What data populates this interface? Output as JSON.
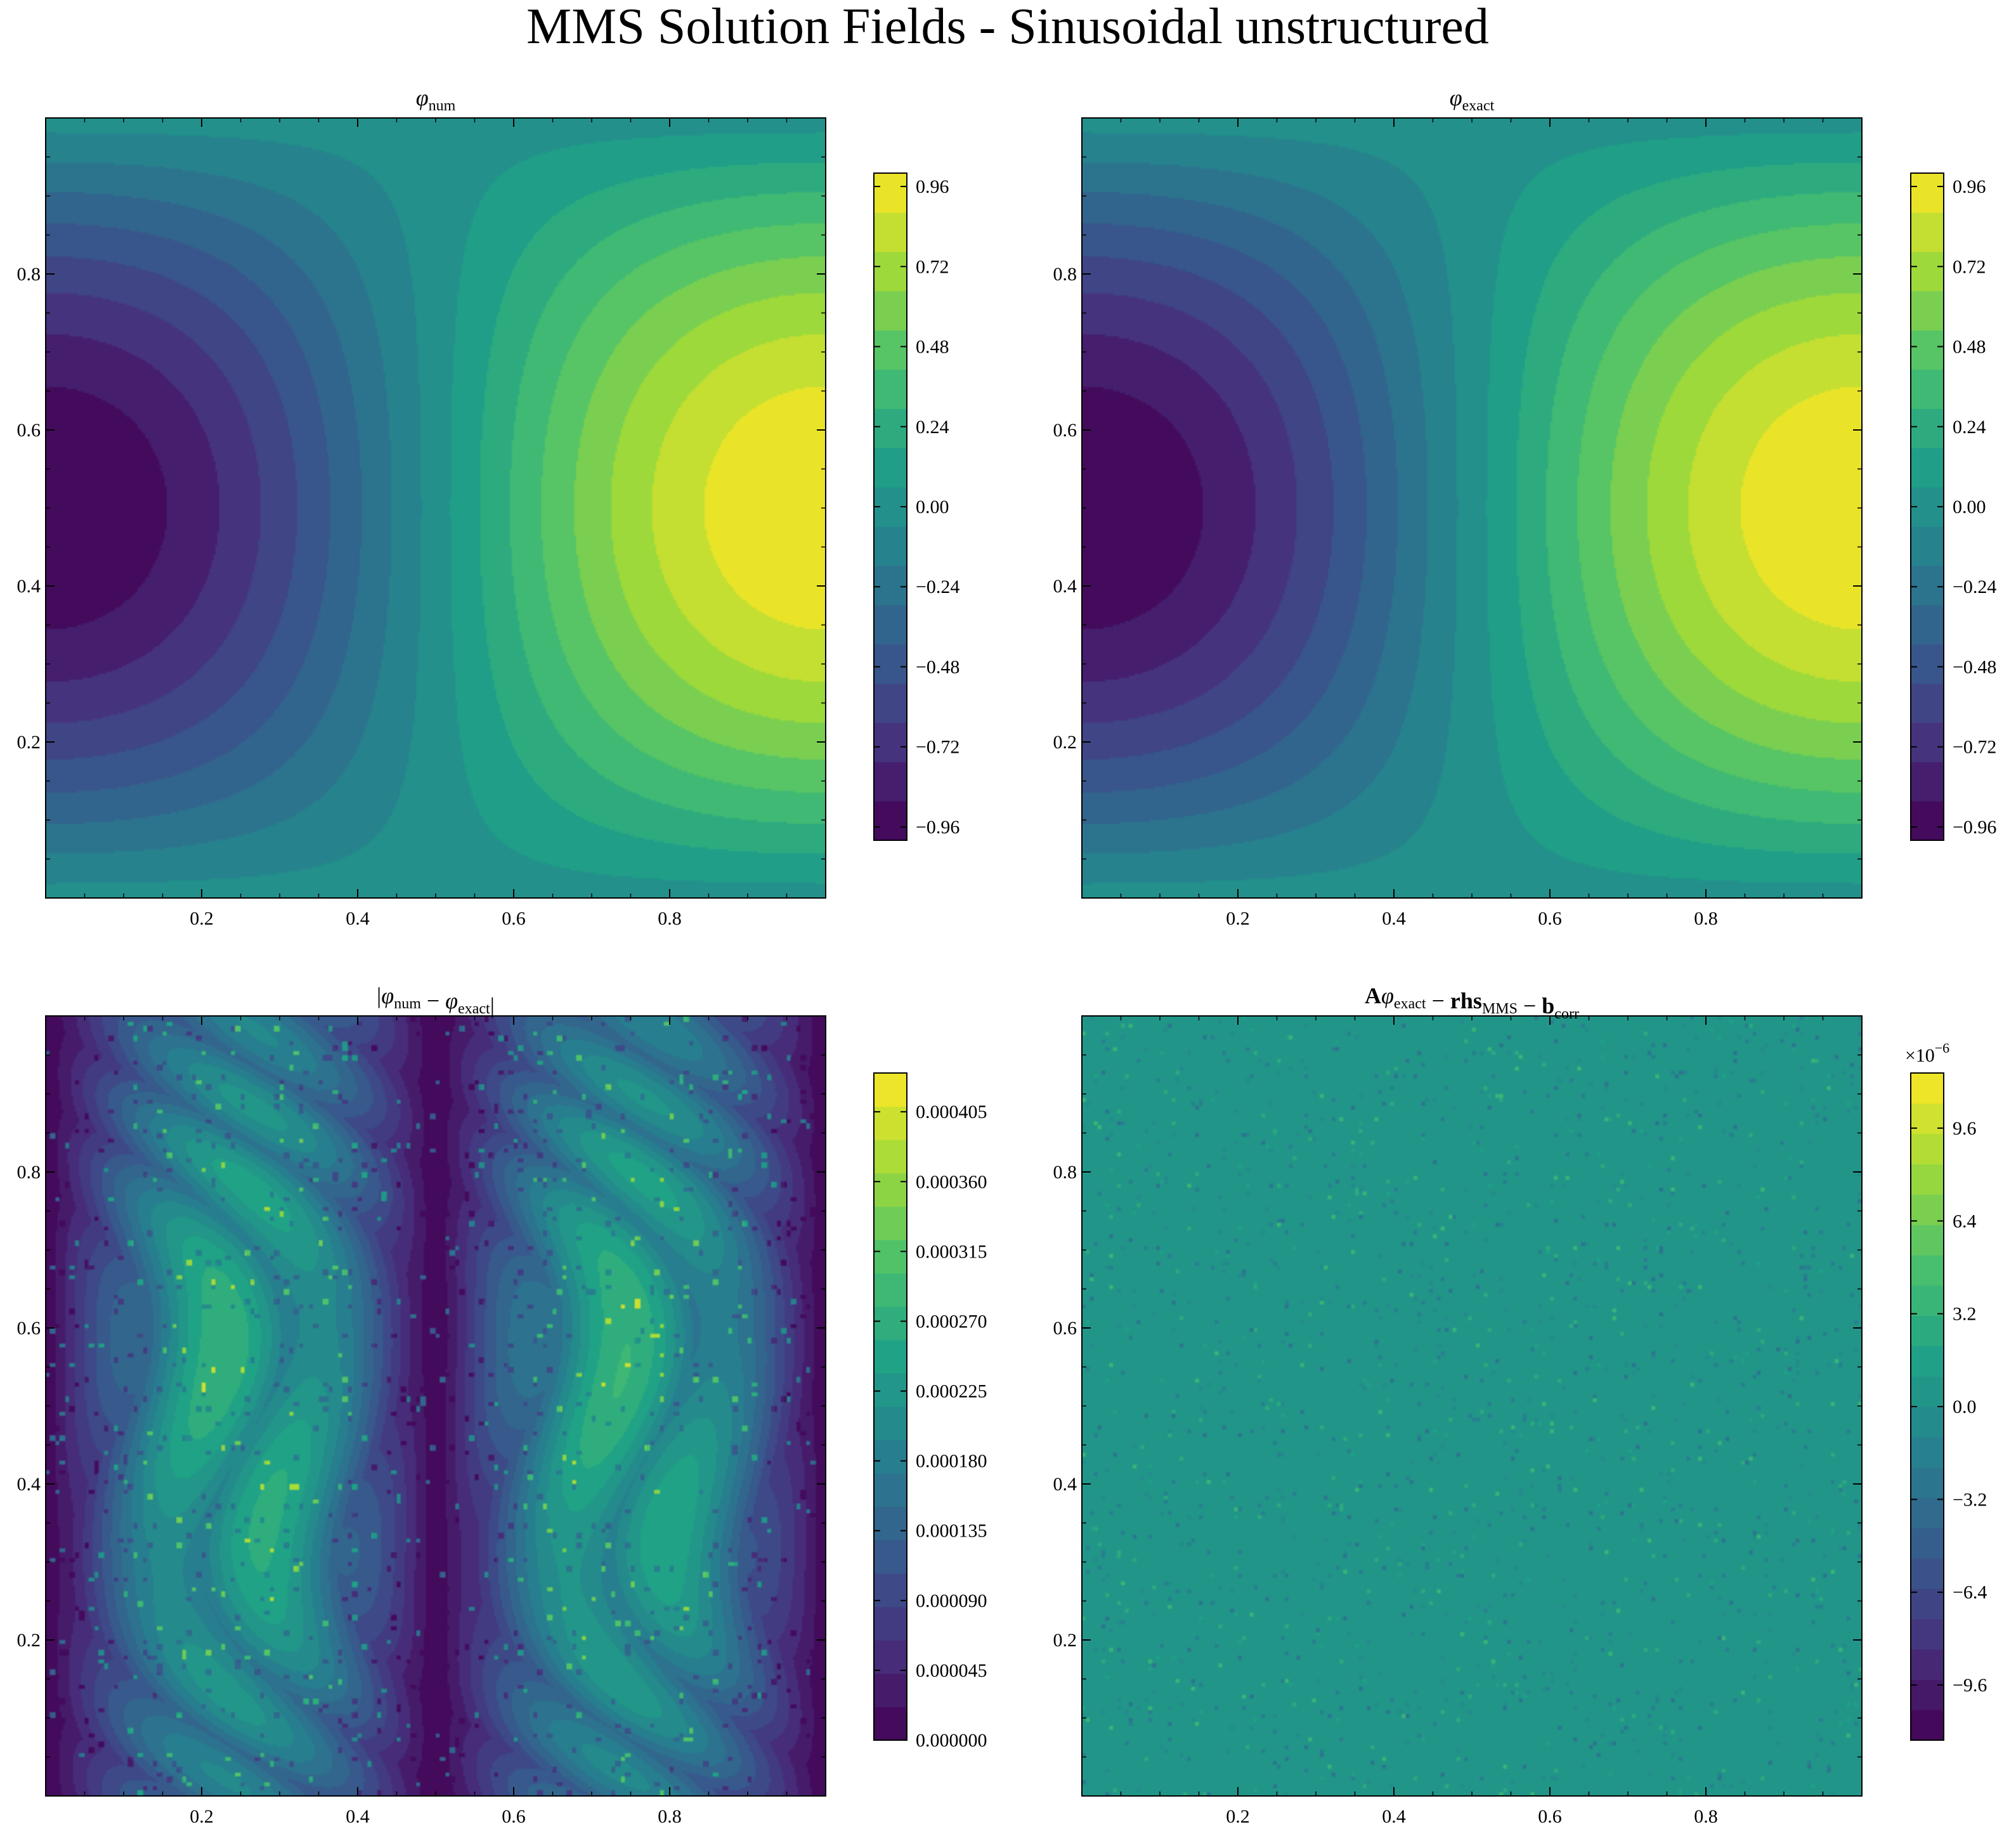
{
  "figure": {
    "title": "MMS Solution Fields - Sinusoidal unstructured"
  },
  "colors": {
    "viridis": [
      "#440154",
      "#46327e",
      "#365c8d",
      "#277f8e",
      "#1fa187",
      "#4ac16d",
      "#a0da39",
      "#fde725"
    ]
  },
  "chart_data": [
    {
      "type": "heatmap",
      "title": "φnum",
      "title_parts": [
        {
          "t": "φ",
          "style": "italic"
        },
        {
          "t": "num",
          "style": "sub"
        }
      ],
      "field": "phi",
      "xlim": [
        0,
        1
      ],
      "ylim": [
        0,
        1
      ],
      "xticks": [
        "0.2",
        "0.4",
        "0.6",
        "0.8"
      ],
      "yticks": [
        "0.2",
        "0.4",
        "0.6",
        "0.8"
      ],
      "colorbar": {
        "vmin": -1.0,
        "vmax": 1.0,
        "ticks": [
          "−0.96",
          "−0.72",
          "−0.48",
          "−0.24",
          "0.00",
          "0.24",
          "0.48",
          "0.72",
          "0.96"
        ],
        "tick_values": [
          -0.96,
          -0.72,
          -0.48,
          -0.24,
          0.0,
          0.24,
          0.48,
          0.72,
          0.96
        ],
        "levels": 17,
        "offset_label": ""
      }
    },
    {
      "type": "heatmap",
      "title": "φexact",
      "title_parts": [
        {
          "t": "φ",
          "style": "italic"
        },
        {
          "t": "exact",
          "style": "sub"
        }
      ],
      "field": "phi",
      "xlim": [
        0,
        1
      ],
      "ylim": [
        0,
        1
      ],
      "xticks": [
        "0.2",
        "0.4",
        "0.6",
        "0.8"
      ],
      "yticks": [
        "0.2",
        "0.4",
        "0.6",
        "0.8"
      ],
      "colorbar": {
        "vmin": -1.0,
        "vmax": 1.0,
        "ticks": [
          "−0.96",
          "−0.72",
          "−0.48",
          "−0.24",
          "0.00",
          "0.24",
          "0.48",
          "0.72",
          "0.96"
        ],
        "tick_values": [
          -0.96,
          -0.72,
          -0.48,
          -0.24,
          0.0,
          0.24,
          0.48,
          0.72,
          0.96
        ],
        "levels": 17,
        "offset_label": ""
      }
    },
    {
      "type": "heatmap",
      "title": "|φnum − φexact|",
      "title_parts": [
        {
          "t": "|",
          "style": "normal"
        },
        {
          "t": "φ",
          "style": "italic"
        },
        {
          "t": "num",
          "style": "sub"
        },
        {
          "t": " − ",
          "style": "normal"
        },
        {
          "t": "φ",
          "style": "italic"
        },
        {
          "t": "exact",
          "style": "sub"
        },
        {
          "t": "|",
          "style": "normal"
        }
      ],
      "field": "error",
      "xlim": [
        0,
        1
      ],
      "ylim": [
        0,
        1
      ],
      "xticks": [
        "0.2",
        "0.4",
        "0.6",
        "0.8"
      ],
      "yticks": [
        "0.2",
        "0.4",
        "0.6",
        "0.8"
      ],
      "colorbar": {
        "vmin": 0.0,
        "vmax": 0.00043,
        "ticks": [
          "0.000000",
          "0.000045",
          "0.000090",
          "0.000135",
          "0.000180",
          "0.000225",
          "0.000270",
          "0.000315",
          "0.000360",
          "0.000405"
        ],
        "tick_values": [
          0.0,
          4.5e-05,
          9e-05,
          0.000135,
          0.00018,
          0.000225,
          0.00027,
          0.000315,
          0.00036,
          0.000405
        ],
        "levels": 20,
        "offset_label": ""
      }
    },
    {
      "type": "heatmap",
      "title": "Aφexact − rhsMMS − bcorr",
      "title_parts": [
        {
          "t": "A",
          "style": "bold"
        },
        {
          "t": "φ",
          "style": "italic"
        },
        {
          "t": "exact",
          "style": "sub"
        },
        {
          "t": " − ",
          "style": "normal"
        },
        {
          "t": "rhs",
          "style": "bold"
        },
        {
          "t": "MMS",
          "style": "sub"
        },
        {
          "t": " − ",
          "style": "normal"
        },
        {
          "t": "b",
          "style": "bold"
        },
        {
          "t": "corr",
          "style": "sub"
        }
      ],
      "field": "residual",
      "xlim": [
        0,
        1
      ],
      "ylim": [
        0,
        1
      ],
      "xticks": [
        "0.2",
        "0.4",
        "0.6",
        "0.8"
      ],
      "yticks": [
        "0.2",
        "0.4",
        "0.6",
        "0.8"
      ],
      "colorbar": {
        "vmin": -11.5,
        "vmax": 11.5,
        "ticks": [
          "−9.6",
          "−6.4",
          "−3.2",
          "0.0",
          "3.2",
          "6.4",
          "9.6"
        ],
        "tick_values": [
          -9.6,
          -6.4,
          -3.2,
          0.0,
          3.2,
          6.4,
          9.6
        ],
        "levels": 22,
        "offset_label": "×10−6"
      }
    }
  ]
}
